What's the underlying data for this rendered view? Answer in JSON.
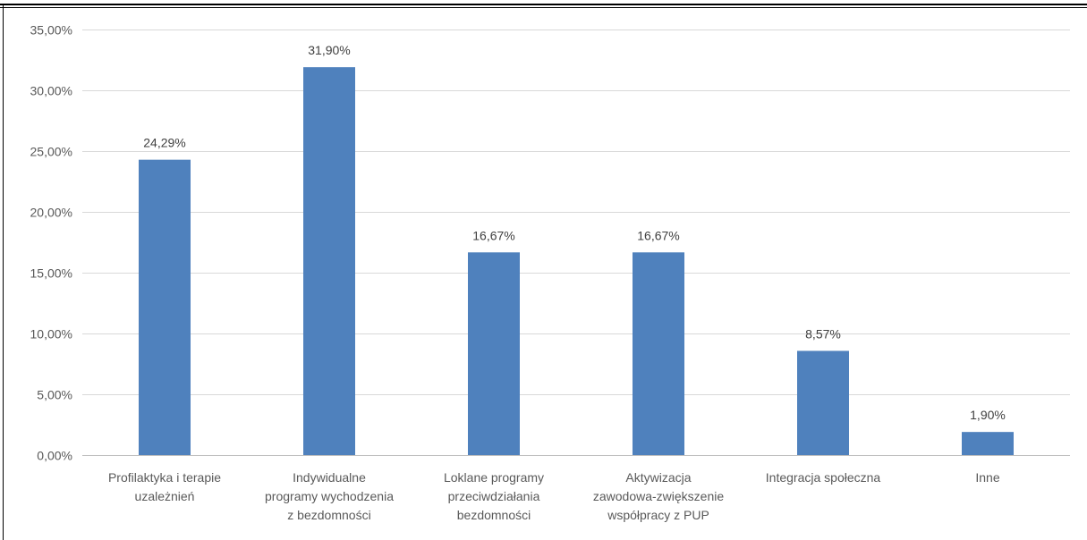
{
  "chart_data": {
    "type": "bar",
    "categories": [
      [
        "Profilaktyka i terapie",
        "uzależnień"
      ],
      [
        "Indywidualne",
        "programy wychodzenia",
        "z bezdomności"
      ],
      [
        "Loklane programy",
        "przeciwdziałania",
        "bezdomności"
      ],
      [
        "Aktywizacja",
        "zawodowa-zwiększenie",
        "współpracy z PUP"
      ],
      [
        "Integracja społeczna"
      ],
      [
        "Inne"
      ]
    ],
    "values": [
      24.29,
      31.9,
      16.67,
      16.67,
      8.57,
      1.9
    ],
    "data_labels": [
      "24,29%",
      "31,90%",
      "16,67%",
      "16,67%",
      "8,57%",
      "1,90%"
    ],
    "ylim": [
      0,
      35
    ],
    "yticks": [
      0,
      5,
      10,
      15,
      20,
      25,
      30,
      35
    ],
    "ytick_labels": [
      "0,00%",
      "5,00%",
      "10,00%",
      "15,00%",
      "20,00%",
      "25,00%",
      "30,00%",
      "35,00%"
    ],
    "title": "",
    "xlabel": "",
    "ylabel": "",
    "grid": true,
    "legend": "none",
    "colors": {
      "bar": "#4f81bd",
      "grid": "#d9d9d9",
      "axis": "#bfbfbf",
      "text": "#595959"
    }
  }
}
